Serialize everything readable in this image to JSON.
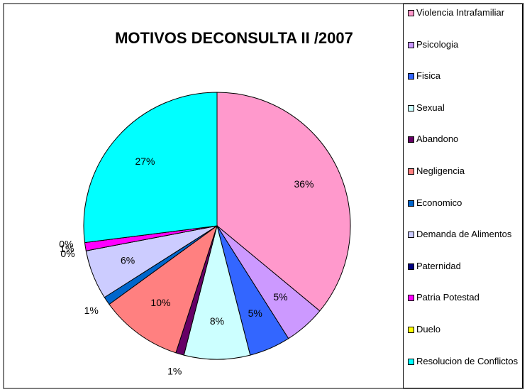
{
  "chart_data": {
    "type": "pie",
    "title": "MOTIVOS DECONSULTA  II /2007",
    "categories": [
      "Violencia Intrafamiliar",
      "Psicologia",
      "Fisica",
      "Sexual",
      "Abandono",
      "Negligencia",
      "Economico",
      "Demanda de Alimentos",
      "Paternidad",
      "Patria Potestad",
      "Duelo",
      "Resolucion de Conflictos"
    ],
    "values": [
      36,
      5,
      5,
      8,
      1,
      10,
      1,
      6,
      0,
      1,
      0,
      27
    ],
    "value_labels": [
      "36%",
      "5%",
      "5%",
      "8%",
      "1%",
      "10%",
      "1%",
      "6%",
      "0%",
      "1%",
      "0%",
      "27%"
    ],
    "colors": [
      "#ff99cc",
      "#cc99ff",
      "#3366ff",
      "#ccffff",
      "#660066",
      "#ff8080",
      "#0066cc",
      "#ccccff",
      "#000080",
      "#ff00ff",
      "#ffff00",
      "#00ffff"
    ],
    "legend": "right"
  }
}
